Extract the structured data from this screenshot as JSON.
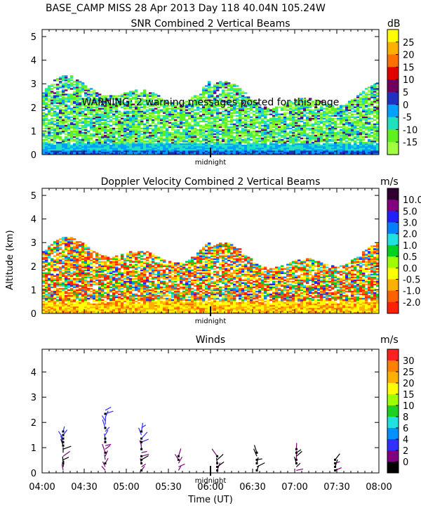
{
  "header": {
    "line1": "BASE_CAMP MISS  28 Apr 2013 Day 118 40.04N 105.24W",
    "warning": "WARNING: 2 warning messages posted for this page",
    "midnight_label": "midnight",
    "yaxis_label": "Altitude (km)",
    "xaxis_label": "Time (UT)"
  },
  "chart_data": [
    {
      "type": "heatmap",
      "id": "snr",
      "title": "SNR Combined 2 Vertical Beams",
      "unit": "dB",
      "ylim": [
        0,
        5.3
      ],
      "yticks": [
        "0",
        "1",
        "2",
        "3",
        "4",
        "5"
      ],
      "xlim_hours": [
        4.0,
        8.0
      ],
      "top_altitude_km": 3.3,
      "colorbar": {
        "labels": [
          "25",
          "20",
          "15",
          "10",
          "5",
          "0",
          "-5",
          "-10",
          "-15"
        ],
        "colors": [
          "#ffff00",
          "#ffb000",
          "#ff7000",
          "#e00000",
          "#700060",
          "#2030c0",
          "#00a0ff",
          "#20e0c0",
          "#60f020",
          "#a0ff40"
        ]
      }
    },
    {
      "type": "heatmap",
      "id": "doppler",
      "title": "Doppler Velocity Combined 2 Vertical Beams",
      "unit": "m/s",
      "ylim": [
        0,
        5.3
      ],
      "yticks": [
        "0",
        "1",
        "2",
        "3",
        "4",
        "5"
      ],
      "xlim_hours": [
        4.0,
        8.0
      ],
      "top_altitude_km": 3.2,
      "colorbar": {
        "labels": [
          "10.0",
          "5.0",
          "3.0",
          "2.0",
          "1.0",
          "0.5",
          "0.0",
          "-0.5",
          "-1.0",
          "-2.0"
        ],
        "colors": [
          "#300030",
          "#800080",
          "#2020ff",
          "#0080ff",
          "#20e0e0",
          "#00d020",
          "#a0ff00",
          "#ffff00",
          "#ffb000",
          "#ff6000",
          "#ff2000"
        ]
      }
    },
    {
      "type": "scatter",
      "id": "winds",
      "title": "Winds",
      "unit": "m/s",
      "ylim": [
        0,
        4.9
      ],
      "yticks": [
        "0",
        "1",
        "2",
        "3",
        "4"
      ],
      "xlim_hours": [
        4.0,
        8.0
      ],
      "xticks": [
        "04:00",
        "04:30",
        "05:00",
        "05:30",
        "06:00",
        "06:30",
        "07:00",
        "07:30",
        "08:00"
      ],
      "profile_times_hours": [
        4.25,
        4.75,
        5.18,
        5.62,
        6.08,
        6.55,
        7.02,
        7.48
      ],
      "colorbar": {
        "labels": [
          "30",
          "25",
          "20",
          "15",
          "10",
          "8",
          "6",
          "4",
          "2",
          "0"
        ],
        "colors": [
          "#ff2020",
          "#ff8000",
          "#ffb000",
          "#ffff00",
          "#a0ff00",
          "#20d020",
          "#20e0e0",
          "#0090ff",
          "#3030ff",
          "#800080",
          "#000000"
        ]
      }
    }
  ]
}
